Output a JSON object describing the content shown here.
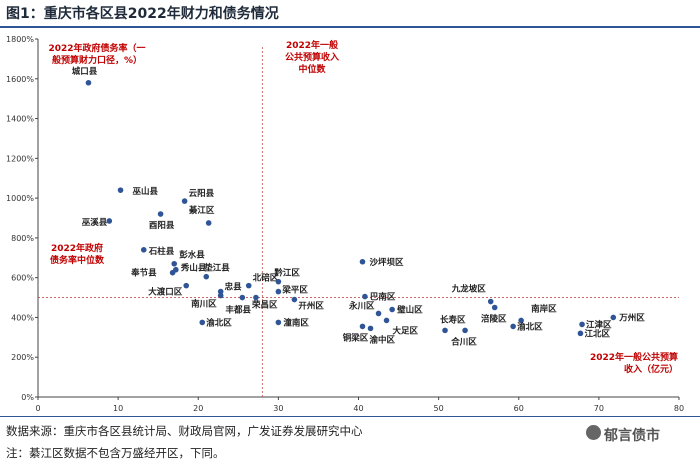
{
  "title": "图1：重庆市各区县2022年财力和债务情况",
  "footnote_source": "数据来源：重庆市各区县统计局、财政局官网，广发证券发展研究中心",
  "footnote_note": "注：綦江区数据不包含万盛经开区，下同。",
  "watermark": "郁言债市",
  "chart_data": {
    "type": "scatter",
    "title": "",
    "xlabel": "2022年一般公共预算收入（亿元）",
    "ylabel": "2022年政府债务率（一般预算财力口径，%）",
    "xlim": [
      0,
      80
    ],
    "ylim": [
      0,
      1800
    ],
    "x_ticks": [
      0,
      10,
      20,
      30,
      40,
      50,
      60,
      70,
      80
    ],
    "y_ticks": [
      0,
      200,
      400,
      600,
      800,
      1000,
      1200,
      1400,
      1600,
      1800
    ],
    "y_tick_labels": [
      "0%",
      "200%",
      "400%",
      "600%",
      "800%",
      "1000%",
      "1200%",
      "1400%",
      "1600%",
      "1800%"
    ],
    "grid": false,
    "marker_color": "#2f5597",
    "ref_line_color": "#c0504d",
    "median_x": 28,
    "median_y": 500,
    "median_x_label": "2022年一般公共预算收入中位数",
    "median_y_label": "2022年政府债务率中位数",
    "points": [
      {
        "name": "城口县",
        "x": 6.3,
        "y": 1580
      },
      {
        "name": "巫山县",
        "x": 10.3,
        "y": 1040
      },
      {
        "name": "巫溪县",
        "x": 8.9,
        "y": 885
      },
      {
        "name": "云阳县",
        "x": 18.3,
        "y": 985
      },
      {
        "name": "酉阳县",
        "x": 15.3,
        "y": 920
      },
      {
        "name": "綦江区",
        "x": 21.3,
        "y": 875
      },
      {
        "name": "石柱县",
        "x": 13.2,
        "y": 740
      },
      {
        "name": "彭水县",
        "x": 17.0,
        "y": 670
      },
      {
        "name": "秀山县",
        "x": 17.2,
        "y": 640
      },
      {
        "name": "奉节县",
        "x": 16.8,
        "y": 625
      },
      {
        "name": "垫江县",
        "x": 21.0,
        "y": 605
      },
      {
        "name": "北碚区",
        "x": 26.3,
        "y": 560
      },
      {
        "name": "忠县",
        "x": 22.8,
        "y": 530
      },
      {
        "name": "大渡口区",
        "x": 18.5,
        "y": 560
      },
      {
        "name": "南川区",
        "x": 22.8,
        "y": 510
      },
      {
        "name": "丰都县",
        "x": 25.5,
        "y": 500
      },
      {
        "name": "荣昌区",
        "x": 27.2,
        "y": 500
      },
      {
        "name": "黔江区",
        "x": 30.0,
        "y": 580
      },
      {
        "name": "梁平区",
        "x": 30.0,
        "y": 530
      },
      {
        "name": "开州区",
        "x": 32.0,
        "y": 490
      },
      {
        "name": "渝北区",
        "x": 20.5,
        "y": 375
      },
      {
        "name": "潼南区",
        "x": 30.0,
        "y": 375
      },
      {
        "name": "沙坪坝区",
        "x": 40.5,
        "y": 680
      },
      {
        "name": "巴南区",
        "x": 40.8,
        "y": 505
      },
      {
        "name": "永川区",
        "x": 42.5,
        "y": 420
      },
      {
        "name": "璧山区",
        "x": 44.2,
        "y": 440
      },
      {
        "name": "大足区",
        "x": 43.5,
        "y": 385
      },
      {
        "name": "铜梁区",
        "x": 40.5,
        "y": 355
      },
      {
        "name": "渝中区",
        "x": 41.5,
        "y": 345
      },
      {
        "name": "长寿区",
        "x": 50.8,
        "y": 335
      },
      {
        "name": "合川区",
        "x": 53.3,
        "y": 335
      },
      {
        "name": "九龙坡区",
        "x": 56.5,
        "y": 480
      },
      {
        "name": "涪陵区",
        "x": 57.0,
        "y": 450
      },
      {
        "name": "南岸区",
        "x": 60.3,
        "y": 385
      },
      {
        "name": "渝北区",
        "x": 59.3,
        "y": 355
      },
      {
        "name": "江津区",
        "x": 67.9,
        "y": 365
      },
      {
        "name": "江北区",
        "x": 67.7,
        "y": 320
      },
      {
        "name": "万州区",
        "x": 71.8,
        "y": 400
      }
    ]
  }
}
